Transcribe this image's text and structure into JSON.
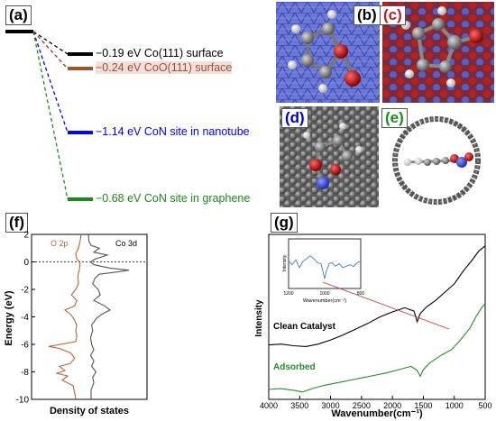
{
  "panels": {
    "a": "(a)",
    "b": "(b)",
    "c": "(c)",
    "d": "(d)",
    "e": "(e)",
    "f": "(f)",
    "g": "(g)"
  },
  "colors": {
    "black": "#000000",
    "brown": "#a0522d",
    "blue": "#0000ff",
    "green": "#1a8a1a",
    "dos_o2p": "#b5653a",
    "dos_co3d": "#555555",
    "ftir_clean": "#000000",
    "ftir_adsorbed": "#2a8a2a",
    "inset_line": "#4a78c8",
    "pointer": "#c0392b"
  },
  "energy_levels": [
    {
      "text": "−0.19 eV Co(111) surface",
      "color": "#000000"
    },
    {
      "text": "−0.24 eV CoO(111) surface",
      "color": "#a0522d"
    },
    {
      "text": "−1.14 eV CoN site in nanotube",
      "color": "#0000ff"
    },
    {
      "text": "−0.68 eV CoN site in graphene",
      "color": "#1a8a1a"
    }
  ],
  "dos": {
    "ylabel": "Energy (eV)",
    "xlabel": "Density of states",
    "ylim": [
      -10,
      2
    ],
    "yticks": [
      "2",
      "0",
      "-2",
      "-4",
      "-6",
      "-8",
      "-10"
    ],
    "legend_o2p": "O 2p",
    "legend_co3d": "Co 3d"
  },
  "ftir": {
    "ylabel": "Intensity",
    "xlabel": "Wavenumber(cm⁻¹)",
    "xticks": [
      "4000",
      "3500",
      "3000",
      "2500",
      "2000",
      "1500",
      "1000",
      "500"
    ],
    "label_clean": "Clean Catalyst",
    "label_adsorbed": "Adsorbed",
    "inset_ylabel": "Intensity",
    "inset_xlabel": "Wavenumber(cm⁻¹)",
    "inset_xticks": [
      "1200",
      "1000",
      "800"
    ]
  },
  "chart_data": [
    {
      "type": "line",
      "xlabel": "Density of states",
      "ylabel": "Energy (eV)",
      "ylim": [
        -10,
        2
      ],
      "series": [
        {
          "name": "O 2p",
          "points": [
            [
              0.0,
              2.0
            ],
            [
              0.02,
              1.5
            ],
            [
              0.05,
              1.0
            ],
            [
              0.1,
              0.6
            ],
            [
              0.08,
              0.2
            ],
            [
              0.02,
              0.0
            ],
            [
              0.03,
              -0.5
            ],
            [
              0.06,
              -1.0
            ],
            [
              0.05,
              -1.6
            ],
            [
              0.1,
              -2.0
            ],
            [
              0.18,
              -2.4
            ],
            [
              0.08,
              -2.8
            ],
            [
              0.12,
              -3.2
            ],
            [
              0.3,
              -3.5
            ],
            [
              0.2,
              -3.8
            ],
            [
              0.14,
              -4.1
            ],
            [
              0.08,
              -4.6
            ],
            [
              0.1,
              -5.0
            ],
            [
              0.08,
              -5.4
            ],
            [
              0.1,
              -5.8
            ],
            [
              0.38,
              -6.0
            ],
            [
              0.6,
              -6.15
            ],
            [
              0.4,
              -6.3
            ],
            [
              0.2,
              -6.6
            ],
            [
              0.12,
              -7.0
            ],
            [
              0.2,
              -7.4
            ],
            [
              0.4,
              -7.6
            ],
            [
              0.3,
              -7.9
            ],
            [
              0.45,
              -8.1
            ],
            [
              0.25,
              -8.3
            ],
            [
              0.35,
              -8.6
            ],
            [
              0.15,
              -9.0
            ],
            [
              0.12,
              -9.5
            ],
            [
              0.1,
              -10.0
            ]
          ]
        },
        {
          "name": "Co 3d",
          "points": [
            [
              0.0,
              2.0
            ],
            [
              0.01,
              1.5
            ],
            [
              0.05,
              1.2
            ],
            [
              0.2,
              1.0
            ],
            [
              0.1,
              0.7
            ],
            [
              0.35,
              0.5
            ],
            [
              0.12,
              0.2
            ],
            [
              0.04,
              0.0
            ],
            [
              0.1,
              -0.2
            ],
            [
              0.4,
              -0.45
            ],
            [
              0.75,
              -0.6
            ],
            [
              0.5,
              -0.75
            ],
            [
              0.2,
              -0.9
            ],
            [
              0.12,
              -1.2
            ],
            [
              0.08,
              -1.6
            ],
            [
              0.18,
              -2.0
            ],
            [
              0.22,
              -2.4
            ],
            [
              0.1,
              -2.8
            ],
            [
              0.3,
              -3.2
            ],
            [
              0.4,
              -3.5
            ],
            [
              0.25,
              -3.8
            ],
            [
              0.15,
              -4.1
            ],
            [
              0.06,
              -4.6
            ],
            [
              0.08,
              -5.0
            ],
            [
              0.04,
              -5.5
            ],
            [
              0.06,
              -6.0
            ],
            [
              0.1,
              -6.4
            ],
            [
              0.04,
              -6.8
            ],
            [
              0.1,
              -7.2
            ],
            [
              0.06,
              -7.6
            ],
            [
              0.14,
              -8.0
            ],
            [
              0.08,
              -8.4
            ],
            [
              0.1,
              -8.8
            ],
            [
              0.05,
              -9.3
            ],
            [
              0.05,
              -10.0
            ]
          ]
        }
      ]
    },
    {
      "type": "line",
      "xlabel": "Wavenumber(cm⁻¹)",
      "ylabel": "Intensity",
      "xlim": [
        4000,
        500
      ],
      "series": [
        {
          "name": "Clean Catalyst",
          "points": [
            [
              4000,
              0.33
            ],
            [
              3800,
              0.335
            ],
            [
              3600,
              0.325
            ],
            [
              3400,
              0.32
            ],
            [
              3200,
              0.335
            ],
            [
              3000,
              0.36
            ],
            [
              2800,
              0.39
            ],
            [
              2600,
              0.425
            ],
            [
              2400,
              0.46
            ],
            [
              2200,
              0.5
            ],
            [
              2000,
              0.53
            ],
            [
              1800,
              0.555
            ],
            [
              1650,
              0.535
            ],
            [
              1600,
              0.47
            ],
            [
              1550,
              0.52
            ],
            [
              1450,
              0.56
            ],
            [
              1300,
              0.6
            ],
            [
              1150,
              0.65
            ],
            [
              1000,
              0.7
            ],
            [
              850,
              0.78
            ],
            [
              700,
              0.85
            ],
            [
              600,
              0.9
            ],
            [
              500,
              0.93
            ]
          ]
        },
        {
          "name": "Adsorbed",
          "points": [
            [
              4000,
              0.06
            ],
            [
              3800,
              0.065
            ],
            [
              3600,
              0.055
            ],
            [
              3450,
              0.045
            ],
            [
              3300,
              0.065
            ],
            [
              3100,
              0.085
            ],
            [
              2900,
              0.1
            ],
            [
              2700,
              0.115
            ],
            [
              2500,
              0.13
            ],
            [
              2300,
              0.145
            ],
            [
              2100,
              0.16
            ],
            [
              1900,
              0.18
            ],
            [
              1700,
              0.2
            ],
            [
              1600,
              0.175
            ],
            [
              1550,
              0.14
            ],
            [
              1500,
              0.18
            ],
            [
              1400,
              0.22
            ],
            [
              1300,
              0.245
            ],
            [
              1200,
              0.27
            ],
            [
              1050,
              0.3
            ],
            [
              900,
              0.36
            ],
            [
              750,
              0.43
            ],
            [
              650,
              0.5
            ],
            [
              550,
              0.56
            ],
            [
              500,
              0.58
            ]
          ]
        }
      ]
    },
    {
      "type": "line",
      "xlabel": "Wavenumber(cm⁻¹)",
      "ylabel": "Intensity",
      "xlim": [
        1200,
        800
      ],
      "series": [
        {
          "name": "inset",
          "points": [
            [
              1200,
              0.55
            ],
            [
              1180,
              0.48
            ],
            [
              1160,
              0.58
            ],
            [
              1140,
              0.42
            ],
            [
              1120,
              0.55
            ],
            [
              1100,
              0.6
            ],
            [
              1080,
              0.66
            ],
            [
              1060,
              0.6
            ],
            [
              1040,
              0.52
            ],
            [
              1020,
              0.5
            ],
            [
              1000,
              0.2
            ],
            [
              990,
              0.35
            ],
            [
              975,
              0.5
            ],
            [
              960,
              0.52
            ],
            [
              940,
              0.45
            ],
            [
              920,
              0.5
            ],
            [
              900,
              0.42
            ],
            [
              880,
              0.45
            ],
            [
              860,
              0.48
            ],
            [
              840,
              0.44
            ],
            [
              820,
              0.52
            ],
            [
              800,
              0.55
            ]
          ]
        }
      ]
    }
  ]
}
